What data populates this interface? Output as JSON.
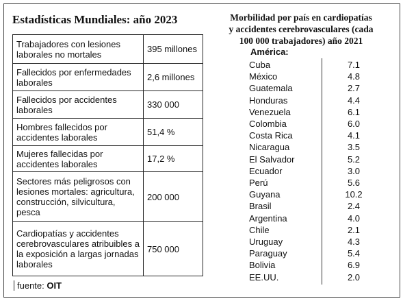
{
  "left": {
    "title": "Estadísticas Mundiales: año 2023",
    "rows": [
      [
        "Trabajadores con lesiones laborales no mortales",
        "395 millones"
      ],
      [
        "Fallecidos por enfermedades laborales",
        "2,6 millones"
      ],
      [
        "Fallecidos por accidentes laborales",
        "330 000"
      ],
      [
        "Hombres fallecidos por accidentes laborales",
        "51,4 %"
      ],
      [
        "Mujeres  fallecidas por accidentes laborales",
        "17,2 %"
      ],
      [
        "Sectores más peligrosos con lesiones mortales: agricultura, construcción, silvicultura, pesca",
        "200 000"
      ],
      [
        "Cardiopatías y accidentes cerebrovasculares atribuibles a la exposición a largas jornadas laborales",
        "750 000"
      ]
    ],
    "source_label": "fuente:",
    "source": "OIT"
  },
  "right": {
    "title_lines": [
      "Morbilidad por país en cardiopatías",
      "y accidentes cerebrovasculares  (cada",
      "100 000 trabajadores) año 2021"
    ],
    "region": "América:",
    "rows": [
      [
        "Cuba",
        "7.1"
      ],
      [
        "México",
        "4.8"
      ],
      [
        "Guatemala",
        "2.7"
      ],
      [
        "Honduras",
        "4.4"
      ],
      [
        "Venezuela",
        "6.1"
      ],
      [
        "Colombia",
        "6.0"
      ],
      [
        "Costa Rica",
        "4.1"
      ],
      [
        "Nicaragua",
        "3.5"
      ],
      [
        "El Salvador",
        "5.2"
      ],
      [
        "Ecuador",
        "3.0"
      ],
      [
        "Perú",
        "5.6"
      ],
      [
        "Guyana",
        "10.2"
      ],
      [
        "Brasil",
        "2.4"
      ],
      [
        "Argentina",
        "4.0"
      ],
      [
        "Chile",
        "2.1"
      ],
      [
        "Uruguay",
        "4.3"
      ],
      [
        "Paraguay",
        "5.4"
      ],
      [
        "Bolivia",
        "6.9"
      ],
      [
        "EE.UU.",
        "2.0"
      ]
    ]
  }
}
